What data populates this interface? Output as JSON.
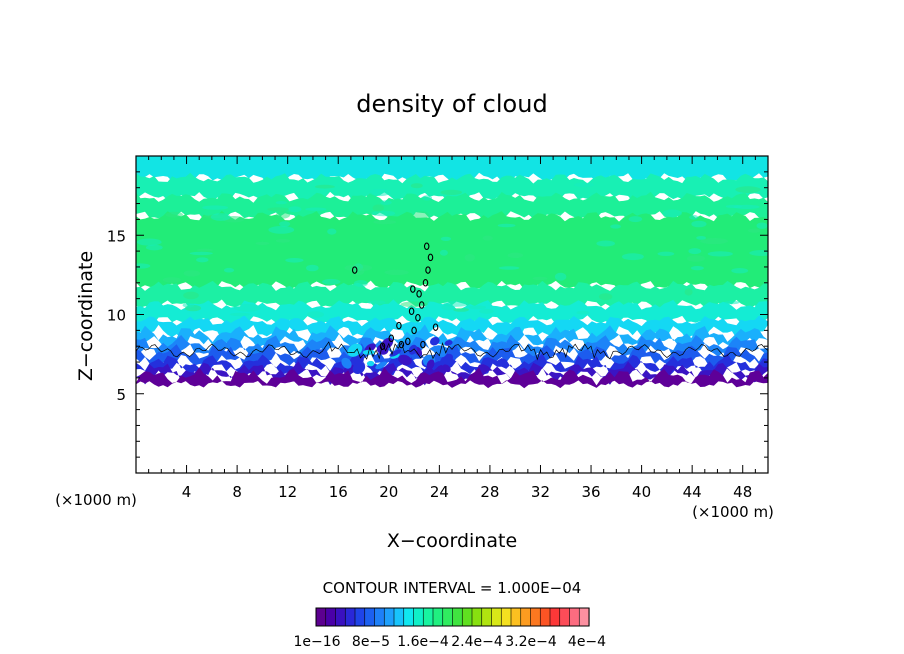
{
  "chart_data": {
    "type": "heatmap",
    "title": "density of cloud",
    "xlabel": "X−coordinate",
    "ylabel": "Z−coordinate",
    "x_unit_label": "(×1000 m)",
    "y_unit_label": "(×1000 m)",
    "xlim": [
      0,
      50
    ],
    "ylim": [
      0,
      20
    ],
    "x_ticks": [
      4,
      8,
      12,
      16,
      20,
      24,
      28,
      32,
      36,
      40,
      44,
      48
    ],
    "x_tick_labels": [
      "4",
      "8",
      "12",
      "16",
      "20",
      "24",
      "28",
      "32",
      "36",
      "40",
      "44",
      "48"
    ],
    "y_ticks": [
      5,
      10,
      15
    ],
    "y_tick_labels": [
      "5",
      "10",
      "15"
    ],
    "grid": false,
    "cloud_base_z": 5.6,
    "cloud_top_z": 20,
    "contour_interval_text": "CONTOUR INTERVAL = 1.000E−04",
    "colorbar": {
      "labels": [
        "1e−16",
        "8e−5",
        "1.6e−4",
        "2.4e−4",
        "3.2e−4",
        "4e−4"
      ],
      "colors": [
        "#5c0090",
        "#4a00a8",
        "#3a10c0",
        "#2a28d8",
        "#1f44e8",
        "#1c60f0",
        "#1e80f8",
        "#1ea0fc",
        "#18c4fc",
        "#10e8f0",
        "#10f0c8",
        "#18f4a0",
        "#20f080",
        "#30ec60",
        "#40e440",
        "#60e020",
        "#88e010",
        "#b0e410",
        "#d8e818",
        "#f4e020",
        "#fcc020",
        "#fc9c20",
        "#fc7820",
        "#fc5424",
        "#fc3838",
        "#fc4c58",
        "#fc6c80",
        "#fc90a0"
      ]
    }
  }
}
